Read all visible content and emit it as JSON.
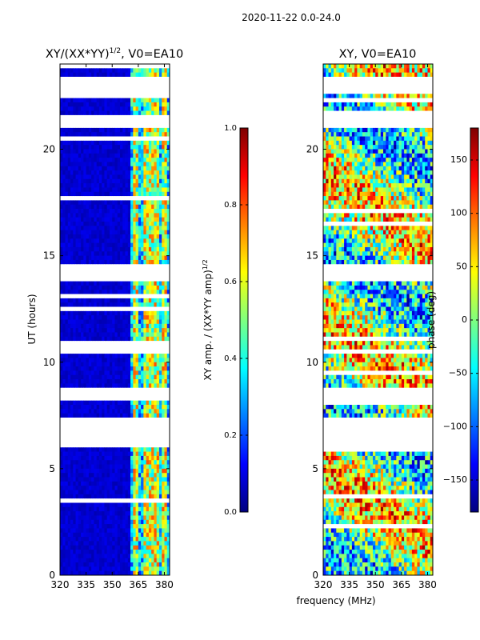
{
  "figure": {
    "suptitle": "2020-11-22 0.0-24.0",
    "xlabel_shared": "frequency (MHz)"
  },
  "colors": {
    "jet": [
      "#00007f",
      "#0000ff",
      "#007fff",
      "#00ffff",
      "#7fff7f",
      "#ffff00",
      "#ff7f00",
      "#ff0000",
      "#7f0000"
    ],
    "background_band": "#0a0a8a",
    "gap": "#ffffff"
  },
  "chart_data": [
    {
      "type": "heatmap",
      "title_main": "XY/(XX*YY)",
      "title_sup": "1/2",
      "title_tail": ", V0=EA10",
      "ylabel": "UT (hours)",
      "xlim": [
        320,
        383
      ],
      "ylim": [
        0,
        24
      ],
      "xticks": [
        "320",
        "335",
        "350",
        "365",
        "380"
      ],
      "xtick_values": [
        320,
        335,
        350,
        365,
        380
      ],
      "yticks": [
        "0",
        "5",
        "10",
        "15",
        "20"
      ],
      "ytick_values": [
        0,
        5,
        10,
        15,
        20
      ],
      "colorbar": {
        "label_main": "XY amp. / (XX*YY amp)",
        "label_sup": "1/2",
        "range": [
          0.0,
          1.0
        ],
        "ticks": [
          "0.0",
          "0.2",
          "0.4",
          "0.6",
          "0.8",
          "1.0"
        ],
        "tick_values": [
          0.0,
          0.2,
          0.4,
          0.6,
          0.8,
          1.0
        ]
      },
      "low_band_level": 0.05,
      "high_freq_start_mhz": 360,
      "gap_hours": [
        [
          6.1,
          7.4
        ],
        [
          8.3,
          8.7
        ],
        [
          10.4,
          10.6
        ],
        [
          13.9,
          14.6
        ],
        [
          21.3,
          21.5
        ],
        [
          22.6,
          22.9
        ],
        [
          23.0,
          23.3
        ]
      ],
      "hot_channels_mhz": [
        364,
        369,
        372,
        376,
        380
      ]
    },
    {
      "type": "heatmap",
      "title_main": "XY, V0=EA10",
      "ylabel": "",
      "xlim": [
        320,
        383
      ],
      "ylim": [
        0,
        24
      ],
      "xticks": [
        "320",
        "335",
        "350",
        "365",
        "380"
      ],
      "xtick_values": [
        320,
        335,
        350,
        365,
        380
      ],
      "yticks": [
        "0",
        "5",
        "10",
        "15",
        "20"
      ],
      "ytick_values": [
        0,
        5,
        10,
        15,
        20
      ],
      "colorbar": {
        "label": "phase (deg)",
        "range": [
          -180,
          180
        ],
        "ticks": [
          "−150",
          "−100",
          "−50",
          "0",
          "50",
          "100",
          "150"
        ],
        "tick_values": [
          -150,
          -100,
          -50,
          0,
          50,
          100,
          150
        ]
      },
      "gap_hours": [
        [
          6.1,
          7.4
        ],
        [
          8.3,
          8.7
        ],
        [
          10.4,
          10.6
        ],
        [
          13.9,
          14.6
        ],
        [
          21.3,
          21.5
        ],
        [
          22.6,
          22.9
        ],
        [
          23.0,
          23.3
        ]
      ]
    }
  ]
}
